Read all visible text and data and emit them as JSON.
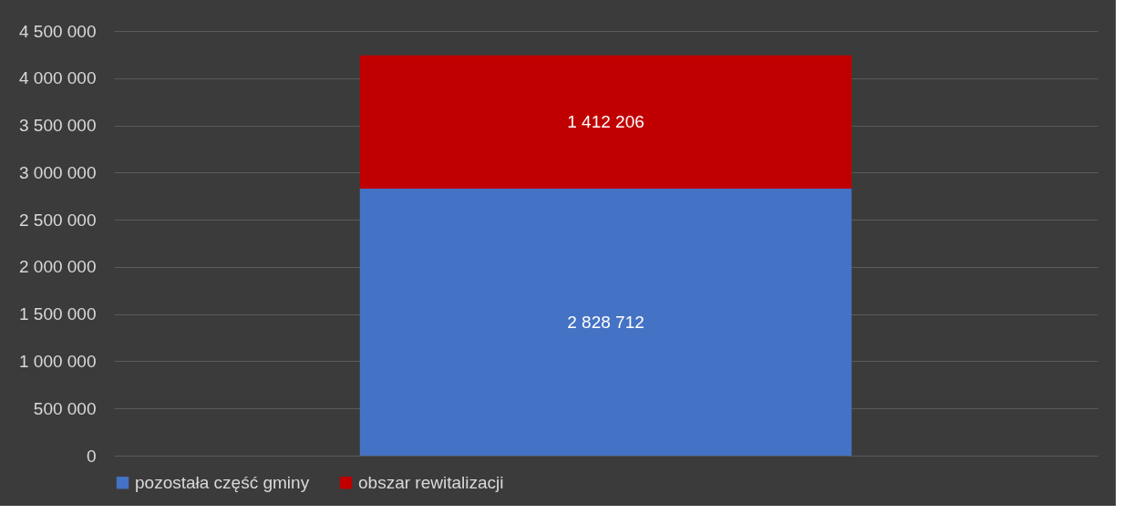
{
  "chart_data": {
    "type": "bar",
    "stacked": true,
    "categories": [
      null
    ],
    "series": [
      {
        "name": "pozostała część gminy",
        "color": "#4472c4",
        "values": [
          2828712
        ],
        "value_labels": [
          "2 828 712"
        ]
      },
      {
        "name": "obszar rewitalizacji",
        "color": "#c00000",
        "values": [
          1412206
        ],
        "value_labels": [
          "1 412 206"
        ]
      }
    ],
    "ylim": [
      0,
      4500000
    ],
    "yticks": [
      {
        "value": 0,
        "label": "0"
      },
      {
        "value": 500000,
        "label": "500 000"
      },
      {
        "value": 1000000,
        "label": "1 000 000"
      },
      {
        "value": 1500000,
        "label": "1 500 000"
      },
      {
        "value": 2000000,
        "label": "2 000 000"
      },
      {
        "value": 2500000,
        "label": "2 500 000"
      },
      {
        "value": 3000000,
        "label": "3 000 000"
      },
      {
        "value": 3500000,
        "label": "3 500 000"
      },
      {
        "value": 4000000,
        "label": "4 000 000"
      },
      {
        "value": 4500000,
        "label": "4 500 000"
      }
    ],
    "grid": "y",
    "legend": "bottom"
  }
}
